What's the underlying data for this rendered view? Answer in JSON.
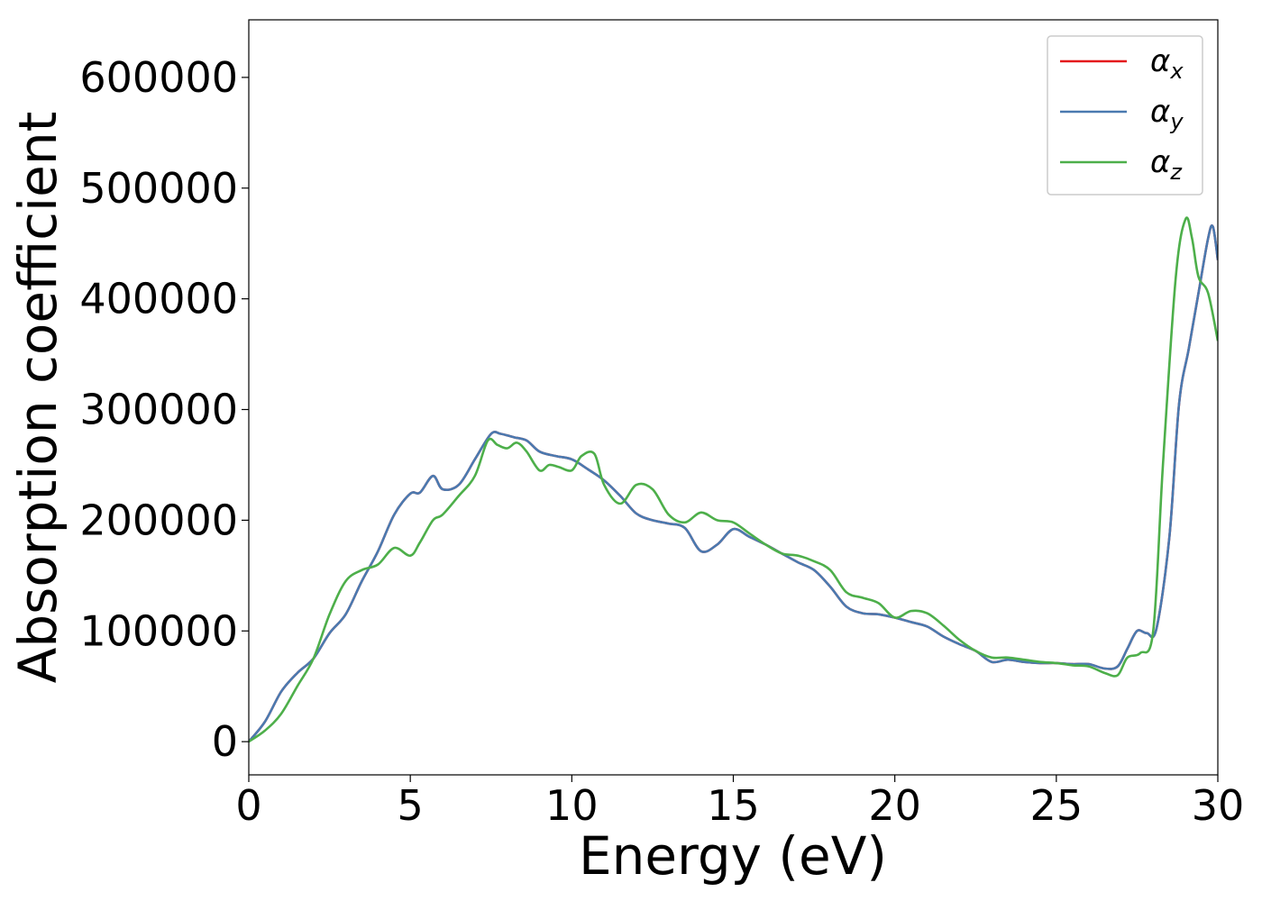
{
  "chart_data": {
    "type": "line",
    "title": "",
    "xlabel": "Energy (eV)",
    "ylabel": "Absorption coefficient",
    "xlim": [
      0,
      30
    ],
    "ylim": [
      -30000,
      652000
    ],
    "xticks": [
      0,
      5,
      10,
      15,
      20,
      25,
      30
    ],
    "yticks": [
      0,
      100000,
      200000,
      300000,
      400000,
      500000,
      600000
    ],
    "grid": false,
    "legend_position": "top-right",
    "series": [
      {
        "name": "x",
        "legend_symbol": "α",
        "legend_subscript": "x",
        "color": "#e41a1c",
        "x": [
          0,
          0.5,
          1,
          1.5,
          2,
          2.5,
          3,
          3.5,
          4,
          4.5,
          5,
          5.3,
          5.7,
          6,
          6.5,
          7,
          7.5,
          7.8,
          8.2,
          8.6,
          9,
          9.5,
          10,
          10.5,
          11,
          11.5,
          12,
          12.5,
          13,
          13.5,
          14,
          14.5,
          15,
          15.5,
          16,
          16.5,
          17,
          17.5,
          18,
          18.5,
          19,
          19.5,
          20,
          20.5,
          21,
          21.5,
          22,
          22.5,
          23,
          23.5,
          24,
          24.5,
          25,
          25.5,
          26,
          26.5,
          26.9,
          27.2,
          27.5,
          27.8,
          28.1,
          28.5,
          28.8,
          29.1,
          29.4,
          29.7,
          29.85,
          30
        ],
        "y": [
          0,
          18000,
          45000,
          62000,
          75000,
          98000,
          115000,
          145000,
          172000,
          205000,
          224000,
          225000,
          240000,
          228000,
          232000,
          255000,
          278000,
          278000,
          275000,
          272000,
          262000,
          258000,
          255000,
          246000,
          236000,
          222000,
          206000,
          200000,
          197000,
          193000,
          172000,
          178000,
          192000,
          185000,
          178000,
          170000,
          162000,
          155000,
          140000,
          122000,
          116000,
          115000,
          112000,
          108000,
          104000,
          95000,
          88000,
          82000,
          72000,
          74000,
          72000,
          71000,
          71000,
          70000,
          70000,
          66000,
          68000,
          84000,
          100000,
          98000,
          102000,
          185000,
          305000,
          355000,
          405000,
          455000,
          465000,
          435000
        ]
      },
      {
        "name": "y",
        "legend_symbol": "α",
        "legend_subscript": "y",
        "color": "#4a7ab0",
        "x": [
          0,
          0.5,
          1,
          1.5,
          2,
          2.5,
          3,
          3.5,
          4,
          4.5,
          5,
          5.3,
          5.7,
          6,
          6.5,
          7,
          7.5,
          7.8,
          8.2,
          8.6,
          9,
          9.5,
          10,
          10.5,
          11,
          11.5,
          12,
          12.5,
          13,
          13.5,
          14,
          14.5,
          15,
          15.5,
          16,
          16.5,
          17,
          17.5,
          18,
          18.5,
          19,
          19.5,
          20,
          20.5,
          21,
          21.5,
          22,
          22.5,
          23,
          23.5,
          24,
          24.5,
          25,
          25.5,
          26,
          26.5,
          26.9,
          27.2,
          27.5,
          27.8,
          28.1,
          28.5,
          28.8,
          29.1,
          29.4,
          29.7,
          29.85,
          30
        ],
        "y": [
          0,
          18000,
          45000,
          62000,
          75000,
          98000,
          115000,
          145000,
          172000,
          205000,
          224000,
          225000,
          240000,
          228000,
          232000,
          255000,
          278000,
          278000,
          275000,
          272000,
          262000,
          258000,
          255000,
          246000,
          236000,
          222000,
          206000,
          200000,
          197000,
          193000,
          172000,
          178000,
          192000,
          185000,
          178000,
          170000,
          162000,
          155000,
          140000,
          122000,
          116000,
          115000,
          112000,
          108000,
          104000,
          95000,
          88000,
          82000,
          72000,
          74000,
          72000,
          71000,
          71000,
          70000,
          70000,
          66000,
          68000,
          84000,
          100000,
          98000,
          102000,
          185000,
          305000,
          355000,
          405000,
          455000,
          465000,
          435000
        ]
      },
      {
        "name": "z",
        "legend_symbol": "α",
        "legend_subscript": "z",
        "color": "#4daf4a",
        "x": [
          0,
          0.5,
          1,
          1.5,
          2,
          2.5,
          3,
          3.5,
          4,
          4.5,
          5,
          5.3,
          5.7,
          6,
          6.5,
          7,
          7.4,
          7.7,
          8,
          8.3,
          8.6,
          9,
          9.3,
          9.6,
          10,
          10.3,
          10.7,
          11,
          11.5,
          12,
          12.5,
          13,
          13.5,
          14,
          14.5,
          15,
          15.5,
          16,
          16.5,
          17,
          17.5,
          18,
          18.5,
          19,
          19.5,
          20,
          20.5,
          21,
          21.5,
          22,
          22.5,
          23,
          23.5,
          24,
          24.5,
          25,
          25.5,
          26,
          26.5,
          26.9,
          27.2,
          27.6,
          28,
          28.3,
          28.7,
          29,
          29.2,
          29.4,
          29.7,
          30
        ],
        "y": [
          0,
          10000,
          25000,
          50000,
          75000,
          115000,
          145000,
          155000,
          160000,
          175000,
          168000,
          180000,
          200000,
          205000,
          222000,
          240000,
          272000,
          268000,
          265000,
          270000,
          262000,
          245000,
          250000,
          248000,
          245000,
          258000,
          260000,
          232000,
          215000,
          232000,
          228000,
          205000,
          198000,
          207000,
          200000,
          198000,
          188000,
          178000,
          170000,
          168000,
          163000,
          155000,
          135000,
          130000,
          125000,
          112000,
          118000,
          116000,
          105000,
          92000,
          82000,
          76000,
          76000,
          74000,
          72000,
          71000,
          69000,
          68000,
          62000,
          60000,
          76000,
          80000,
          100000,
          250000,
          420000,
          472000,
          455000,
          420000,
          405000,
          362000
        ]
      }
    ]
  }
}
